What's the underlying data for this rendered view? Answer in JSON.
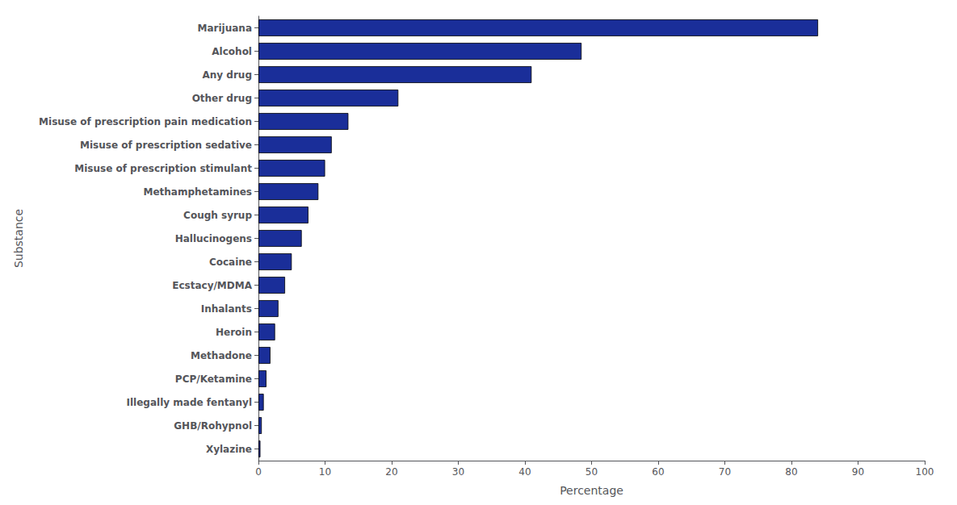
{
  "chart_data": {
    "type": "bar",
    "orientation": "horizontal",
    "categories": [
      "Marijuana",
      "Alcohol",
      "Any drug",
      "Other drug",
      "Misuse of prescription pain medication",
      "Misuse of prescription sedative",
      "Misuse of prescription stimulant",
      "Methamphetamines",
      "Cough syrup",
      "Hallucinogens",
      "Cocaine",
      "Ecstacy/MDMA",
      "Inhalants",
      "Heroin",
      "Methadone",
      "PCP/Ketamine",
      "Illegally made fentanyl",
      "GHB/Rohypnol",
      "Xylazine"
    ],
    "values": [
      84.0,
      48.5,
      41.0,
      21.0,
      13.5,
      11.0,
      10.0,
      9.0,
      7.5,
      6.5,
      5.0,
      4.0,
      3.0,
      2.5,
      1.8,
      1.2,
      0.8,
      0.5,
      0.3
    ],
    "color": "#1a2e99",
    "xlabel": "Percentage",
    "ylabel": "Substance",
    "xlim": [
      0,
      100
    ],
    "xticks": [
      0,
      10,
      20,
      30,
      40,
      50,
      60,
      70,
      80,
      90,
      100
    ],
    "grid": false
  }
}
